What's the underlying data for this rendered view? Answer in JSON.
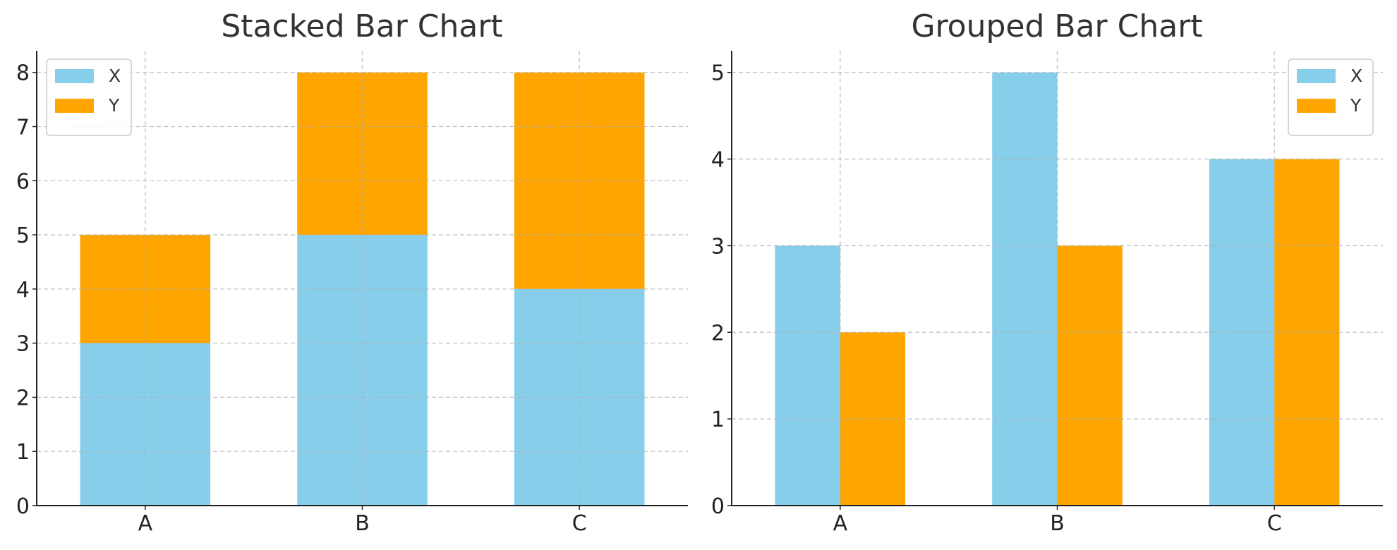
{
  "chart_data": [
    {
      "type": "bar",
      "mode": "stacked",
      "title": "Stacked Bar Chart",
      "categories": [
        "A",
        "B",
        "C"
      ],
      "series": [
        {
          "name": "X",
          "values": [
            3,
            5,
            4
          ],
          "color": "#87CEEB"
        },
        {
          "name": "Y",
          "values": [
            2,
            3,
            4
          ],
          "color": "#FFA500"
        }
      ],
      "ylim": [
        0,
        8.4
      ],
      "yticks": [
        0,
        1,
        2,
        3,
        4,
        5,
        6,
        7,
        8
      ],
      "grid": true,
      "legend": "top-left"
    },
    {
      "type": "bar",
      "mode": "grouped",
      "title": "Grouped Bar Chart",
      "categories": [
        "A",
        "B",
        "C"
      ],
      "series": [
        {
          "name": "X",
          "values": [
            3,
            5,
            4
          ],
          "color": "#87CEEB"
        },
        {
          "name": "Y",
          "values": [
            2,
            3,
            4
          ],
          "color": "#FFA500"
        }
      ],
      "ylim": [
        0,
        5.25
      ],
      "yticks": [
        0,
        1,
        2,
        3,
        4,
        5
      ],
      "grid": true,
      "legend": "top-right"
    }
  ]
}
